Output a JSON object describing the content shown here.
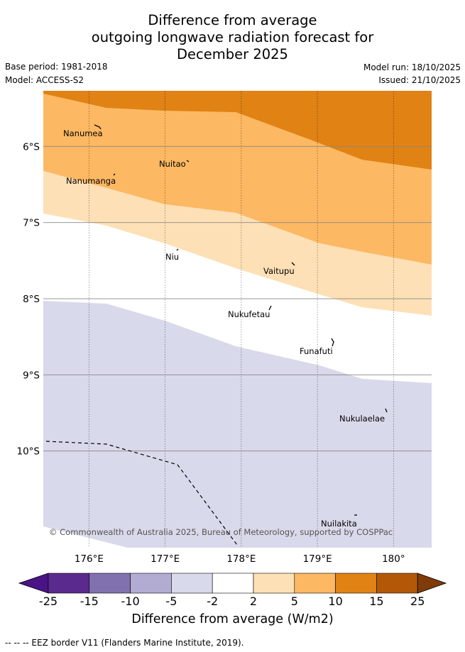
{
  "title_lines": [
    "Difference from average",
    "outgoing longwave radiation forecast for",
    "December 2025"
  ],
  "meta": {
    "base_period": "Base period: 1981-2018",
    "model": "Model: ACCESS-S2",
    "model_run": "Model run: 18/10/2025",
    "issued": "Issued: 21/10/2025"
  },
  "axes": {
    "lon_labels": [
      "176°E",
      "177°E",
      "178°E",
      "179°E",
      "180°"
    ],
    "lat_labels": [
      "6°S",
      "7°S",
      "8°S",
      "9°S",
      "10°S"
    ]
  },
  "map_extent": {
    "lon_min": 175.4,
    "lon_max": 180.5,
    "lat_min": -11.27,
    "lat_max": -5.27
  },
  "places": [
    {
      "name": "Nanumea",
      "lon": 176.12,
      "lat": -5.67
    },
    {
      "name": "Nuitao",
      "lon": 177.3,
      "lat": -6.1
    },
    {
      "name": "Nanumanga",
      "lon": 176.35,
      "lat": -6.3
    },
    {
      "name": "Niu",
      "lon": 177.33,
      "lat": -7.22
    },
    {
      "name": "Vaitupu",
      "lon": 178.68,
      "lat": -7.48
    },
    {
      "name": "Nukufetau",
      "lon": 178.38,
      "lat": -8.03
    },
    {
      "name": "Funafuti",
      "lon": 179.2,
      "lat": -8.52
    },
    {
      "name": "Nukulaelae",
      "lon": 179.83,
      "lat": -9.4
    },
    {
      "name": "Nuilakita",
      "lon": 179.5,
      "lat": -10.8
    }
  ],
  "copyright": "© Commonwealth of Australia 2025, Bureau of Meteorology, supported by COSPPac",
  "colorbar": {
    "labels": [
      "-25",
      "-15",
      "-10",
      "-5",
      "-2",
      "2",
      "5",
      "10",
      "15",
      "25"
    ],
    "colors": [
      "#4a1486",
      "#5b2a8e",
      "#8171ae",
      "#b2abd2",
      "#d8d9ea",
      "#ffffff",
      "#fee0b6",
      "#fdb863",
      "#e08214",
      "#b35806",
      "#7f3b08"
    ],
    "title": "Difference from average (W/m2)"
  },
  "footer": "-- -- -- EEZ border V11 (Flanders Marine Institute, 2019)."
}
